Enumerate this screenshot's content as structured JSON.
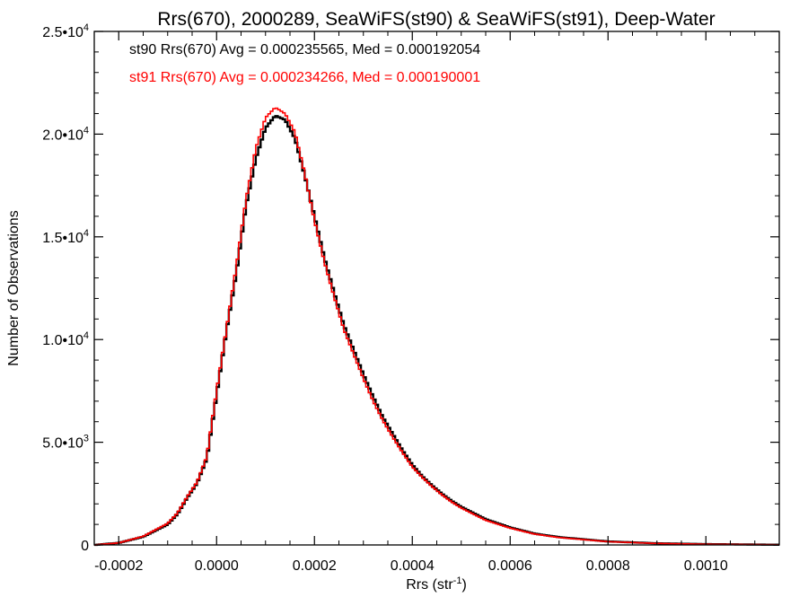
{
  "chart_data": {
    "type": "histogram",
    "title": "Rrs(670), 2000289, SeaWiFS(st90) & SeaWiFS(st91), Deep-Water",
    "xlabel": "Rrs (str",
    "xlabel_sup": "-1",
    "xlabel_close": ")",
    "ylabel": "Number of Observations",
    "xlim": [
      -0.00025,
      0.00115
    ],
    "ylim": [
      0,
      25000
    ],
    "x_ticks": [
      {
        "value": -0.0002,
        "label": "-0.0002"
      },
      {
        "value": 0.0,
        "label": "0.0000"
      },
      {
        "value": 0.0002,
        "label": "0.0002"
      },
      {
        "value": 0.0004,
        "label": "0.0004"
      },
      {
        "value": 0.0006,
        "label": "0.0006"
      },
      {
        "value": 0.0008,
        "label": "0.0008"
      },
      {
        "value": 0.001,
        "label": "0.0010"
      }
    ],
    "y_ticks": [
      {
        "value": 0,
        "mantissa": "0",
        "exp": ""
      },
      {
        "value": 5000,
        "mantissa": "5.0•10",
        "exp": "3"
      },
      {
        "value": 10000,
        "mantissa": "1.0•10",
        "exp": "4"
      },
      {
        "value": 15000,
        "mantissa": "1.5•10",
        "exp": "4"
      },
      {
        "value": 20000,
        "mantissa": "2.0•10",
        "exp": "4"
      },
      {
        "value": 25000,
        "mantissa": "2.5•10",
        "exp": "4"
      }
    ],
    "series": [
      {
        "name": "st90",
        "legend": "st90 Rrs(670) Avg = 0.000235565, Med = 0.000192054",
        "color": "#000000",
        "x": [
          -0.00025,
          -0.0002,
          -0.00015,
          -0.0001,
          -8e-05,
          -6e-05,
          -4e-05,
          -2e-05,
          0.0,
          2e-05,
          4e-05,
          6e-05,
          8e-05,
          0.0001,
          0.00012,
          0.00014,
          0.00016,
          0.00018,
          0.0002,
          0.00022,
          0.00024,
          0.00026,
          0.00028,
          0.0003,
          0.00032,
          0.00034,
          0.00036,
          0.00038,
          0.0004,
          0.00042,
          0.00044,
          0.00046,
          0.00048,
          0.0005,
          0.00055,
          0.0006,
          0.00065,
          0.0007,
          0.0008,
          0.0009,
          0.001,
          0.00115
        ],
        "y": [
          0,
          100,
          400,
          1000,
          1500,
          2300,
          3000,
          4200,
          7300,
          10400,
          13200,
          16500,
          18800,
          20300,
          20900,
          20700,
          19800,
          18000,
          16000,
          14000,
          12300,
          10700,
          9500,
          8300,
          7200,
          6200,
          5400,
          4600,
          3900,
          3350,
          2900,
          2500,
          2150,
          1850,
          1250,
          850,
          550,
          380,
          170,
          80,
          40,
          10
        ]
      },
      {
        "name": "st91",
        "legend": "st91 Rrs(670) Avg = 0.000234266, Med = 0.000190001",
        "color": "#ff0000",
        "x": [
          -0.00025,
          -0.0002,
          -0.00015,
          -0.0001,
          -8e-05,
          -6e-05,
          -4e-05,
          -2e-05,
          0.0,
          2e-05,
          4e-05,
          6e-05,
          8e-05,
          0.0001,
          0.00012,
          0.00014,
          0.00016,
          0.00018,
          0.0002,
          0.00022,
          0.00024,
          0.00026,
          0.00028,
          0.0003,
          0.00032,
          0.00034,
          0.00036,
          0.00038,
          0.0004,
          0.00042,
          0.00044,
          0.00046,
          0.00048,
          0.0005,
          0.00055,
          0.0006,
          0.00065,
          0.0007,
          0.0008,
          0.0009,
          0.001,
          0.00115
        ],
        "y": [
          0,
          100,
          420,
          1050,
          1550,
          2350,
          3050,
          4300,
          7500,
          10500,
          13500,
          16800,
          19300,
          20800,
          21300,
          21000,
          20100,
          18100,
          15800,
          13800,
          12100,
          10500,
          9300,
          8100,
          7000,
          6050,
          5250,
          4500,
          3800,
          3300,
          2850,
          2450,
          2100,
          1800,
          1200,
          820,
          530,
          360,
          160,
          75,
          35,
          10
        ]
      }
    ]
  }
}
